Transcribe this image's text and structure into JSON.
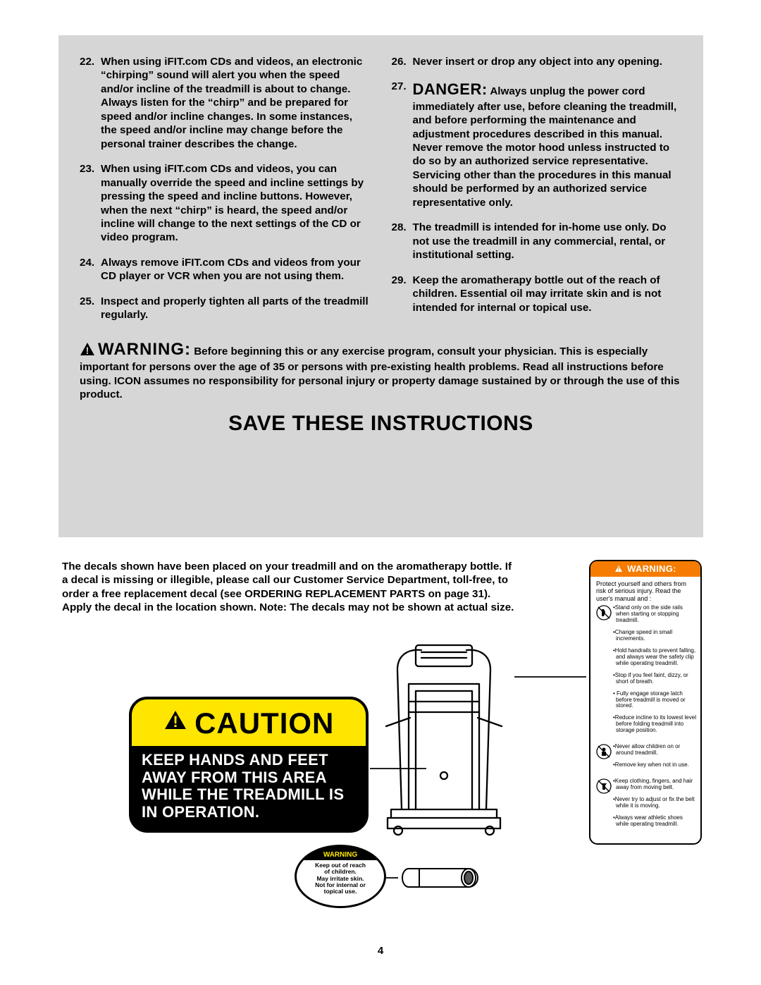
{
  "gray_box": {
    "background": "#d6d6d6",
    "left_items": [
      {
        "num": "22.",
        "text": "When using iFIT.com CDs and videos, an electronic “chirping” sound will alert you when the speed and/or incline of the treadmill is about to change. Always listen for the “chirp” and be prepared for speed and/or incline changes. In some instances, the speed and/or incline may change before the personal trainer describes the change."
      },
      {
        "num": "23.",
        "text": "When using iFIT.com CDs and videos, you can manually override the speed and incline settings by pressing the speed and incline buttons. However, when the next “chirp” is heard, the speed and/or incline will change to the next settings of the CD or video program."
      },
      {
        "num": "24.",
        "text": "Always remove iFIT.com CDs and videos from your CD player or VCR when you are not using them."
      },
      {
        "num": "25.",
        "text": "Inspect and properly tighten all parts of the treadmill regularly."
      }
    ],
    "right_items": [
      {
        "num": "26.",
        "text": "Never insert or drop any object into any opening."
      },
      {
        "num": "27.",
        "danger": "DANGER:",
        "text": " Always unplug the power cord immediately after use, before cleaning the treadmill, and before performing the maintenance and adjustment procedures described in this manual. Never remove the motor hood unless instructed to do so by an authorized service representative. Servicing other than the procedures in this manual should be performed by an authorized service representative only."
      },
      {
        "num": "28.",
        "text": "The treadmill is intended for in-home use only. Do not use the treadmill in any commercial, rental, or institutional setting."
      },
      {
        "num": "29.",
        "text": "Keep the aromatherapy bottle out of the reach of children. Essential oil may irritate skin and is not intended for internal or topical use."
      }
    ],
    "warning_word": "WARNING:",
    "warning_text": " Before beginning this or any exercise program, consult your physician. This is especially important for persons over the age of 35 or persons with pre-existing health problems. Read all instructions before using. ICON assumes no responsibility for personal injury or property damage sustained by or through the use of this product.",
    "save": "SAVE THESE INSTRUCTIONS"
  },
  "decal_intro": "The decals shown have been placed on your treadmill and on the aromatherapy bottle. If a decal is missing or illegible, please call our Customer Service Department, toll-free, to order a free replacement decal (see ORDERING REPLACEMENT PARTS on page 31). Apply the decal in the location shown. Note: The decals may not be shown at actual size.",
  "caution_decal": {
    "bg_top": "#ffe600",
    "word": "CAUTION",
    "body": "KEEP HANDS AND FEET AWAY FROM THIS AREA WHILE THE TREADMILL IS IN OPERATION."
  },
  "tall_decal": {
    "head_bg": "#f57c00",
    "head": "WARNING:",
    "intro": "Protect yourself and others from risk of serious injury.  Read the user's manual and :",
    "rows": [
      {
        "icon": "stand",
        "bullets": [
          "•Stand only on the side rails when starting or stopping treadmill.",
          "•Change speed in small increments.",
          "•Hold handrails to prevent falling, and always wear the safety clip while operating treadmill.",
          "•Stop if you feel faint, dizzy, or short of breath.",
          "• Fully engage storage latch  before treadmill  is moved or stored.",
          "•Reduce incline to its lowest level before folding treadmill into storage position."
        ]
      },
      {
        "icon": "child",
        "bullets": [
          "•Never allow children on or around treadmill.",
          "•Remove key when not in use."
        ]
      },
      {
        "icon": "clothing",
        "bullets": [
          "•Keep clothing, fingers, and hair away from moving belt.",
          "•Never try to adjust or fix the belt while it is moving.",
          "•Always wear athletic shoes while operating treadmill."
        ]
      }
    ]
  },
  "small_oval": {
    "head": "WARNING",
    "body_lines": [
      "Keep out of reach",
      "of children.",
      "May irritate skin.",
      "Not for internal or",
      "topical use."
    ]
  },
  "page_number": "4"
}
